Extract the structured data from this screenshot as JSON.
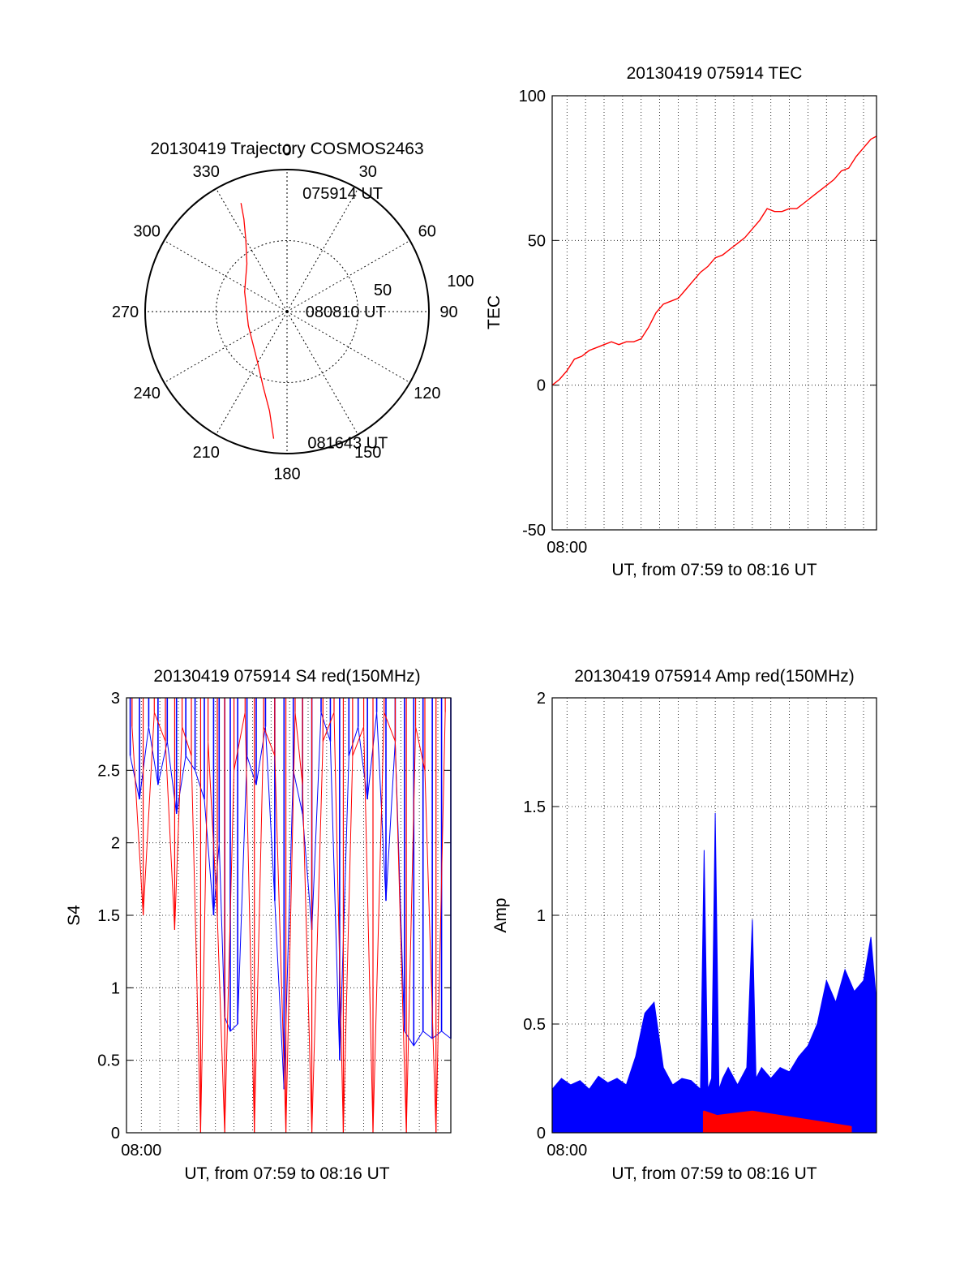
{
  "chart_data": [
    {
      "id": "trajectory",
      "type": "polar",
      "title": "20130419 Trajectory COSMOS2463",
      "azimuth_labels": [
        "0",
        "30",
        "60",
        "90",
        "120",
        "150",
        "180",
        "210",
        "240",
        "270",
        "300",
        "330"
      ],
      "radial_labels": [
        "50",
        "100"
      ],
      "rmax": 100,
      "series": [
        {
          "color": "#ff0000",
          "points": [
            {
              "az": 337,
              "r": 83
            },
            {
              "az": 335,
              "r": 72
            },
            {
              "az": 330,
              "r": 58
            },
            {
              "az": 320,
              "r": 44
            },
            {
              "az": 295,
              "r": 33
            },
            {
              "az": 250,
              "r": 29
            },
            {
              "az": 212,
              "r": 40
            },
            {
              "az": 198,
              "r": 55
            },
            {
              "az": 190,
              "r": 71
            },
            {
              "az": 186,
              "r": 90
            }
          ]
        }
      ],
      "annotations": [
        {
          "text": "075914 UT",
          "az": 2,
          "r": 83
        },
        {
          "text": "080810 UT",
          "az": 95,
          "r": 5
        },
        {
          "text": "081643 UT",
          "az": 176,
          "r": 93
        }
      ]
    },
    {
      "id": "tec",
      "type": "line",
      "title": "20130419 075914 TEC",
      "xlabel": "UT, from 07:59 to 08:16 UT",
      "ylabel": "TEC",
      "x_unit": "minutes after 07:59 UT",
      "xlim": [
        0,
        17.5
      ],
      "ylim": [
        -50,
        100
      ],
      "yticks": [
        -50,
        0,
        50,
        100
      ],
      "xtick_labels": [
        {
          "x": 0.8,
          "label": "08:00"
        }
      ],
      "grid": true,
      "series": [
        {
          "color": "#ff0000",
          "x": [
            0,
            0.4,
            0.8,
            1.2,
            1.6,
            2.0,
            2.4,
            2.8,
            3.2,
            3.6,
            4.0,
            4.4,
            4.8,
            5.2,
            5.6,
            6.0,
            6.4,
            6.8,
            7.2,
            7.6,
            8.0,
            8.4,
            8.8,
            9.2,
            9.6,
            10.0,
            10.4,
            10.8,
            11.2,
            11.6,
            12.0,
            12.4,
            12.8,
            13.2,
            13.6,
            14.0,
            14.4,
            14.8,
            15.2,
            15.6,
            16.0,
            16.4,
            16.8,
            17.2,
            17.5
          ],
          "y": [
            0,
            2,
            5,
            9,
            10,
            12,
            13,
            14,
            15,
            14,
            15,
            15,
            16,
            20,
            25,
            28,
            29,
            30,
            33,
            36,
            39,
            41,
            44,
            45,
            47,
            49,
            51,
            54,
            57,
            61,
            60,
            60,
            61,
            61,
            63,
            65,
            67,
            69,
            71,
            74,
            75,
            79,
            82,
            85,
            86
          ]
        }
      ]
    },
    {
      "id": "s4",
      "type": "line",
      "title": "20130419 075914 S4 red(150MHz)",
      "xlabel": "UT, from 07:59 to 08:16 UT",
      "ylabel": "S4",
      "x_unit": "minutes after 07:59 UT",
      "xlim": [
        0,
        17.5
      ],
      "ylim": [
        0,
        3
      ],
      "yticks": [
        0,
        0.5,
        1,
        1.5,
        2,
        2.5,
        3
      ],
      "ytick_labels": [
        "0",
        "0.5",
        "1",
        "1.5",
        "2",
        "2.5",
        "3"
      ],
      "xtick_labels": [
        {
          "x": 0.8,
          "label": "08:00"
        }
      ],
      "grid": true,
      "series": [
        {
          "name": "",
          "color": "#0000ff",
          "x": [
            0.2,
            0.7,
            1.2,
            1.7,
            2.2,
            2.7,
            3.2,
            3.7,
            4.2,
            4.7,
            5.0,
            5.3,
            5.6,
            6.0,
            6.5,
            7.0,
            7.5,
            8.0,
            8.5,
            9.0,
            9.5,
            10.0,
            10.5,
            11.0,
            11.5,
            12.0,
            12.5,
            13.0,
            13.5,
            14.0,
            14.5,
            15.0,
            15.5,
            16.0,
            16.5,
            17.0,
            17.5
          ],
          "y": [
            2.6,
            2.3,
            2.8,
            2.4,
            2.7,
            2.2,
            2.6,
            2.5,
            2.3,
            1.5,
            2.0,
            0.8,
            0.7,
            0.75,
            2.6,
            2.4,
            2.8,
            1.6,
            0.3,
            2.5,
            2.2,
            1.4,
            2.9,
            2.7,
            0.5,
            2.6,
            2.8,
            2.3,
            2.9,
            1.6,
            2.7,
            0.7,
            0.6,
            0.7,
            0.65,
            0.7,
            0.65
          ]
        },
        {
          "name": "",
          "color": "#ff0000",
          "x": [
            0.3,
            0.9,
            1.5,
            2.1,
            2.6,
            3.0,
            3.5,
            4.0,
            4.4,
            4.9,
            5.3,
            5.8,
            6.4,
            6.9,
            7.4,
            8.0,
            8.6,
            9.1,
            9.5,
            10.0,
            10.6,
            11.2,
            11.7,
            12.2,
            12.8,
            13.3,
            13.9,
            14.5,
            15.1,
            15.6,
            16.1,
            16.7,
            17.2
          ],
          "y": [
            2.8,
            1.5,
            2.9,
            2.7,
            1.4,
            2.8,
            2.6,
            0.0,
            2.7,
            1.5,
            0.0,
            2.5,
            2.9,
            0.0,
            2.8,
            2.6,
            0.0,
            2.9,
            2.4,
            0.0,
            2.7,
            2.9,
            0.0,
            2.6,
            2.8,
            0.0,
            2.9,
            2.7,
            0.0,
            2.8,
            2.5,
            0.0,
            2.9
          ]
        }
      ]
    },
    {
      "id": "amp",
      "type": "line",
      "title": "20130419 075914 Amp red(150MHz)",
      "xlabel": "UT, from 07:59 to 08:16 UT",
      "ylabel": "Amp",
      "x_unit": "minutes after 07:59 UT",
      "xlim": [
        0,
        17.5
      ],
      "ylim": [
        0,
        2
      ],
      "yticks": [
        0,
        0.5,
        1,
        1.5,
        2
      ],
      "ytick_labels": [
        "0",
        "0.5",
        "1",
        "1.5",
        "2"
      ],
      "xtick_labels": [
        {
          "x": 0.8,
          "label": "08:00"
        }
      ],
      "grid": true,
      "series": [
        {
          "name": "",
          "color": "#0000ff",
          "x": [
            0,
            0.5,
            1.0,
            1.5,
            2.0,
            2.5,
            3.0,
            3.5,
            4.0,
            4.5,
            5.0,
            5.5,
            6.0,
            6.5,
            7.0,
            7.5,
            8.0,
            8.2,
            8.4,
            8.6,
            8.8,
            9.0,
            9.2,
            9.5,
            10.0,
            10.5,
            10.8,
            11.0,
            11.3,
            11.8,
            12.3,
            12.8,
            13.3,
            13.8,
            14.3,
            14.8,
            15.3,
            15.8,
            16.3,
            16.8,
            17.2,
            17.5
          ],
          "y": [
            0.2,
            0.25,
            0.22,
            0.24,
            0.2,
            0.26,
            0.23,
            0.25,
            0.22,
            0.35,
            0.55,
            0.6,
            0.3,
            0.22,
            0.25,
            0.24,
            0.2,
            1.3,
            0.2,
            0.25,
            1.47,
            0.2,
            0.25,
            0.3,
            0.22,
            0.3,
            0.98,
            0.25,
            0.3,
            0.25,
            0.3,
            0.28,
            0.35,
            0.4,
            0.5,
            0.7,
            0.6,
            0.75,
            0.65,
            0.7,
            0.9,
            0.6
          ]
        },
        {
          "name": "",
          "color": "#ff0000",
          "x": [
            8.2,
            8.9,
            10.8,
            16.1
          ],
          "y": [
            0.1,
            0.08,
            0.1,
            0.03
          ]
        }
      ]
    }
  ]
}
